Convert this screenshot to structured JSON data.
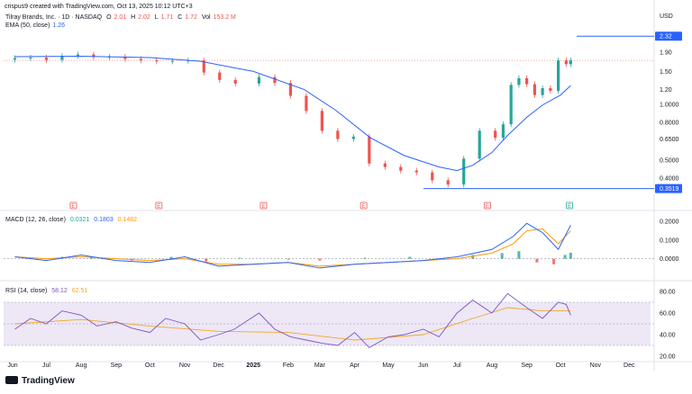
{
  "header": {
    "watermark": "crispus9 created with TradingView.com, Oct 13, 2025 10:12 UTC+3",
    "symbol": "Tilray Brands, Inc. · 1D · NASDAQ",
    "ohlc": {
      "o_label": "O",
      "o": "2.01",
      "h_label": "H",
      "h": "2.02",
      "l_label": "L",
      "l": "1.71",
      "c_label": "C",
      "c": "1.72",
      "vol_label": "Vol",
      "vol": "153.2 M"
    },
    "ema_label": "EMA (50, close)",
    "ema_value": "1.26",
    "macd_label": "MACD (12, 26, close)",
    "macd_values": [
      "0.0321",
      "0.1803",
      "0.1482"
    ],
    "rsi_label": "RSI (14, close)",
    "rsi_values": [
      "58.12",
      "62.51"
    ]
  },
  "footer": {
    "brand": "TradingView"
  },
  "colors": {
    "up": "#26a69a",
    "down": "#ef5350",
    "ema": "#2962ff",
    "macd": "#2962ff",
    "signal": "#ff9800",
    "rsi": "#7e57c2",
    "rsi_ma": "#f5a623",
    "band": "#ede7f6",
    "tag": "#2962ff"
  },
  "chart_data": [
    {
      "type": "candlestick",
      "currency": "USD",
      "scale": "log",
      "ylim": [
        0.3,
        2.6
      ],
      "y_ticks": [
        "2.32",
        "1.90",
        "1.50",
        "1.20",
        "1.0000",
        "0.8000",
        "0.6500",
        "0.5000",
        "0.4000",
        "0.3519"
      ],
      "x_ticks": [
        "Jun",
        "Jul",
        "Aug",
        "Sep",
        "Oct",
        "Nov",
        "Dec",
        "2025",
        "Feb",
        "Mar",
        "Apr",
        "May",
        "Jun",
        "Jul",
        "Aug",
        "Sep",
        "Oct",
        "Nov",
        "Dec"
      ],
      "horizontal_lines": [
        {
          "label": "2.32",
          "value": 2.32,
          "color": "#2962ff"
        },
        {
          "label": "0.3519",
          "value": 0.3519,
          "color": "#2962ff"
        },
        {
          "label": "",
          "value": 1.72,
          "color": "#ef5350"
        }
      ],
      "earnings_markers": [
        {
          "label": "E",
          "date": "2024-07-25"
        },
        {
          "label": "E",
          "date": "2024-10-09"
        },
        {
          "label": "E",
          "date": "2025-01-10"
        },
        {
          "label": "E",
          "date": "2025-04-09"
        },
        {
          "label": "E",
          "date": "2025-07-28"
        },
        {
          "label": "E",
          "date": "2025-10-09"
        }
      ],
      "series": [
        {
          "name": "Tilray Brands, Inc.",
          "close": [
            {
              "date": "2024-06-03",
              "value": 1.77
            },
            {
              "date": "2024-06-17",
              "value": 1.78
            },
            {
              "date": "2024-07-01",
              "value": 1.73
            },
            {
              "date": "2024-07-15",
              "value": 1.82
            },
            {
              "date": "2024-07-29",
              "value": 1.85
            },
            {
              "date": "2024-08-12",
              "value": 1.79
            },
            {
              "date": "2024-08-26",
              "value": 1.8
            },
            {
              "date": "2024-09-09",
              "value": 1.75
            },
            {
              "date": "2024-09-23",
              "value": 1.72
            },
            {
              "date": "2024-10-07",
              "value": 1.7
            },
            {
              "date": "2024-10-21",
              "value": 1.71
            },
            {
              "date": "2024-11-04",
              "value": 1.72
            },
            {
              "date": "2024-11-18",
              "value": 1.48
            },
            {
              "date": "2024-12-02",
              "value": 1.35
            },
            {
              "date": "2024-12-16",
              "value": 1.29
            },
            {
              "date": "2025-01-06",
              "value": 1.4
            },
            {
              "date": "2025-01-20",
              "value": 1.3
            },
            {
              "date": "2025-02-03",
              "value": 1.11
            },
            {
              "date": "2025-02-17",
              "value": 0.92
            },
            {
              "date": "2025-03-03",
              "value": 0.72
            },
            {
              "date": "2025-03-17",
              "value": 0.65
            },
            {
              "date": "2025-03-31",
              "value": 0.67
            },
            {
              "date": "2025-04-14",
              "value": 0.48
            },
            {
              "date": "2025-04-28",
              "value": 0.46
            },
            {
              "date": "2025-05-12",
              "value": 0.44
            },
            {
              "date": "2025-05-26",
              "value": 0.43
            },
            {
              "date": "2025-06-09",
              "value": 0.39
            },
            {
              "date": "2025-06-23",
              "value": 0.37
            },
            {
              "date": "2025-07-07",
              "value": 0.51
            },
            {
              "date": "2025-07-21",
              "value": 0.72
            },
            {
              "date": "2025-08-04",
              "value": 0.66
            },
            {
              "date": "2025-08-11",
              "value": 0.78
            },
            {
              "date": "2025-08-18",
              "value": 1.27
            },
            {
              "date": "2025-08-25",
              "value": 1.38
            },
            {
              "date": "2025-09-01",
              "value": 1.28
            },
            {
              "date": "2025-09-08",
              "value": 1.12
            },
            {
              "date": "2025-09-15",
              "value": 1.22
            },
            {
              "date": "2025-09-22",
              "value": 1.18
            },
            {
              "date": "2025-09-29",
              "value": 1.72
            },
            {
              "date": "2025-10-06",
              "value": 1.64
            },
            {
              "date": "2025-10-10",
              "value": 1.72
            }
          ]
        },
        {
          "name": "EMA (50, close)",
          "values": [
            {
              "date": "2024-06-03",
              "value": 1.8
            },
            {
              "date": "2024-08-01",
              "value": 1.81
            },
            {
              "date": "2024-10-01",
              "value": 1.78
            },
            {
              "date": "2024-11-15",
              "value": 1.7
            },
            {
              "date": "2025-01-01",
              "value": 1.5
            },
            {
              "date": "2025-02-15",
              "value": 1.2
            },
            {
              "date": "2025-03-15",
              "value": 0.93
            },
            {
              "date": "2025-04-15",
              "value": 0.66
            },
            {
              "date": "2025-05-15",
              "value": 0.53
            },
            {
              "date": "2025-06-15",
              "value": 0.46
            },
            {
              "date": "2025-07-01",
              "value": 0.44
            },
            {
              "date": "2025-07-15",
              "value": 0.47
            },
            {
              "date": "2025-08-01",
              "value": 0.55
            },
            {
              "date": "2025-08-15",
              "value": 0.68
            },
            {
              "date": "2025-09-01",
              "value": 0.85
            },
            {
              "date": "2025-09-15",
              "value": 0.99
            },
            {
              "date": "2025-10-01",
              "value": 1.12
            },
            {
              "date": "2025-10-10",
              "value": 1.26
            }
          ]
        }
      ]
    },
    {
      "type": "line",
      "name": "MACD (12, 26, close)",
      "ylim": [
        -0.06,
        0.23
      ],
      "y_ticks": [
        "0.2000",
        "0.1000",
        "0.0000"
      ],
      "series": [
        {
          "name": "MACD",
          "values": [
            {
              "date": "2024-06-03",
              "value": 0.01
            },
            {
              "date": "2024-07-01",
              "value": -0.01
            },
            {
              "date": "2024-08-01",
              "value": 0.02
            },
            {
              "date": "2024-09-01",
              "value": -0.01
            },
            {
              "date": "2024-10-01",
              "value": -0.02
            },
            {
              "date": "2024-11-01",
              "value": 0.01
            },
            {
              "date": "2024-12-01",
              "value": -0.04
            },
            {
              "date": "2025-01-01",
              "value": -0.03
            },
            {
              "date": "2025-02-01",
              "value": -0.02
            },
            {
              "date": "2025-03-01",
              "value": -0.05
            },
            {
              "date": "2025-04-01",
              "value": -0.03
            },
            {
              "date": "2025-05-01",
              "value": -0.02
            },
            {
              "date": "2025-06-01",
              "value": -0.01
            },
            {
              "date": "2025-07-01",
              "value": 0.01
            },
            {
              "date": "2025-08-01",
              "value": 0.05
            },
            {
              "date": "2025-08-20",
              "value": 0.12
            },
            {
              "date": "2025-09-01",
              "value": 0.19
            },
            {
              "date": "2025-09-15",
              "value": 0.14
            },
            {
              "date": "2025-09-29",
              "value": 0.05
            },
            {
              "date": "2025-10-10",
              "value": 0.18
            }
          ]
        },
        {
          "name": "Signal",
          "values": [
            {
              "date": "2024-06-03",
              "value": 0.01
            },
            {
              "date": "2024-07-01",
              "value": 0.0
            },
            {
              "date": "2024-08-01",
              "value": 0.01
            },
            {
              "date": "2024-09-01",
              "value": 0.0
            },
            {
              "date": "2024-10-01",
              "value": -0.01
            },
            {
              "date": "2024-11-01",
              "value": 0.0
            },
            {
              "date": "2024-12-01",
              "value": -0.03
            },
            {
              "date": "2025-01-01",
              "value": -0.03
            },
            {
              "date": "2025-02-01",
              "value": -0.02
            },
            {
              "date": "2025-03-01",
              "value": -0.04
            },
            {
              "date": "2025-04-01",
              "value": -0.03
            },
            {
              "date": "2025-05-01",
              "value": -0.02
            },
            {
              "date": "2025-06-01",
              "value": -0.01
            },
            {
              "date": "2025-07-01",
              "value": 0.0
            },
            {
              "date": "2025-08-01",
              "value": 0.03
            },
            {
              "date": "2025-08-20",
              "value": 0.08
            },
            {
              "date": "2025-09-01",
              "value": 0.15
            },
            {
              "date": "2025-09-15",
              "value": 0.16
            },
            {
              "date": "2025-09-29",
              "value": 0.08
            },
            {
              "date": "2025-10-10",
              "value": 0.15
            }
          ]
        },
        {
          "name": "Histogram",
          "values": [
            {
              "date": "2024-07-15",
              "value": 0.01
            },
            {
              "date": "2024-08-10",
              "value": 0.01
            },
            {
              "date": "2024-09-15",
              "value": -0.01
            },
            {
              "date": "2024-10-20",
              "value": 0.01
            },
            {
              "date": "2024-11-20",
              "value": -0.015
            },
            {
              "date": "2024-12-20",
              "value": 0.005
            },
            {
              "date": "2025-02-01",
              "value": -0.005
            },
            {
              "date": "2025-03-01",
              "value": -0.01
            },
            {
              "date": "2025-04-10",
              "value": 0.005
            },
            {
              "date": "2025-05-20",
              "value": 0.01
            },
            {
              "date": "2025-06-20",
              "value": 0.005
            },
            {
              "date": "2025-07-15",
              "value": 0.02
            },
            {
              "date": "2025-08-10",
              "value": 0.03
            },
            {
              "date": "2025-08-25",
              "value": 0.04
            },
            {
              "date": "2025-09-10",
              "value": -0.02
            },
            {
              "date": "2025-09-25",
              "value": -0.03
            },
            {
              "date": "2025-10-05",
              "value": 0.02
            },
            {
              "date": "2025-10-10",
              "value": 0.032
            }
          ]
        }
      ]
    },
    {
      "type": "line",
      "name": "RSI (14, close)",
      "ylim": [
        20,
        85
      ],
      "y_ticks": [
        "80.00",
        "60.00",
        "40.00",
        "20.00"
      ],
      "bands": [
        70,
        30
      ],
      "series": [
        {
          "name": "RSI",
          "values": [
            {
              "date": "2024-06-03",
              "value": 45
            },
            {
              "date": "2024-06-17",
              "value": 55
            },
            {
              "date": "2024-07-01",
              "value": 50
            },
            {
              "date": "2024-07-15",
              "value": 62
            },
            {
              "date": "2024-08-01",
              "value": 58
            },
            {
              "date": "2024-08-15",
              "value": 48
            },
            {
              "date": "2024-09-01",
              "value": 52
            },
            {
              "date": "2024-09-15",
              "value": 46
            },
            {
              "date": "2024-10-01",
              "value": 42
            },
            {
              "date": "2024-10-15",
              "value": 55
            },
            {
              "date": "2024-11-01",
              "value": 50
            },
            {
              "date": "2024-11-15",
              "value": 35
            },
            {
              "date": "2024-12-01",
              "value": 40
            },
            {
              "date": "2024-12-15",
              "value": 45
            },
            {
              "date": "2025-01-06",
              "value": 60
            },
            {
              "date": "2025-01-20",
              "value": 45
            },
            {
              "date": "2025-02-03",
              "value": 38
            },
            {
              "date": "2025-02-17",
              "value": 35
            },
            {
              "date": "2025-03-03",
              "value": 32
            },
            {
              "date": "2025-03-17",
              "value": 30
            },
            {
              "date": "2025-04-01",
              "value": 42
            },
            {
              "date": "2025-04-14",
              "value": 28
            },
            {
              "date": "2025-05-01",
              "value": 38
            },
            {
              "date": "2025-05-15",
              "value": 40
            },
            {
              "date": "2025-06-01",
              "value": 45
            },
            {
              "date": "2025-06-15",
              "value": 38
            },
            {
              "date": "2025-07-01",
              "value": 60
            },
            {
              "date": "2025-07-15",
              "value": 72
            },
            {
              "date": "2025-08-01",
              "value": 60
            },
            {
              "date": "2025-08-15",
              "value": 78
            },
            {
              "date": "2025-09-01",
              "value": 65
            },
            {
              "date": "2025-09-15",
              "value": 55
            },
            {
              "date": "2025-09-29",
              "value": 70
            },
            {
              "date": "2025-10-06",
              "value": 68
            },
            {
              "date": "2025-10-10",
              "value": 58
            }
          ]
        },
        {
          "name": "RSI-based MA",
          "values": [
            {
              "date": "2024-06-03",
              "value": 50
            },
            {
              "date": "2024-08-01",
              "value": 54
            },
            {
              "date": "2024-10-01",
              "value": 48
            },
            {
              "date": "2024-12-01",
              "value": 43
            },
            {
              "date": "2025-02-01",
              "value": 42
            },
            {
              "date": "2025-04-01",
              "value": 35
            },
            {
              "date": "2025-06-01",
              "value": 40
            },
            {
              "date": "2025-07-15",
              "value": 55
            },
            {
              "date": "2025-08-15",
              "value": 65
            },
            {
              "date": "2025-09-15",
              "value": 62
            },
            {
              "date": "2025-10-10",
              "value": 62
            }
          ]
        }
      ]
    }
  ]
}
